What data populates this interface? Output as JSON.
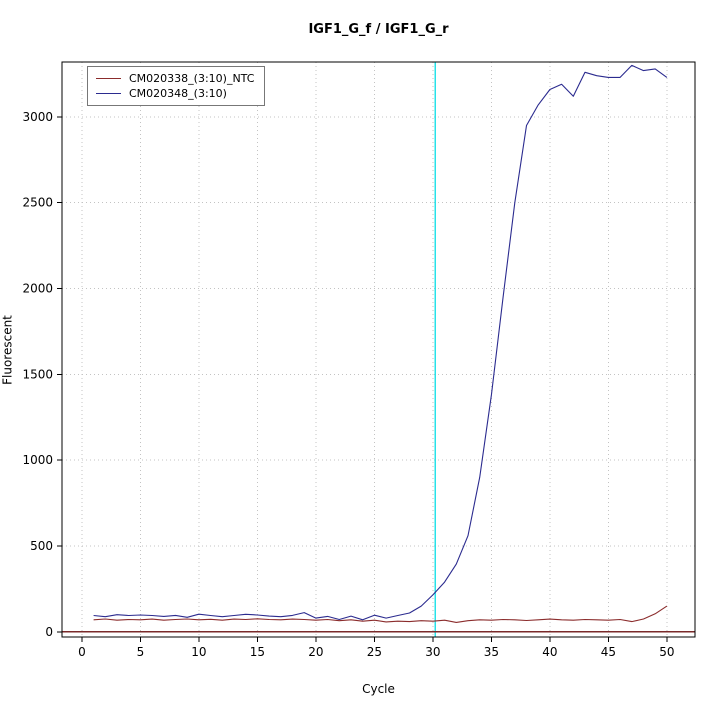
{
  "title": "IGF1_G_f / IGF1_G_r",
  "chart_data": {
    "type": "line",
    "title": "IGF1_G_f / IGF1_G_r",
    "xlabel": "Cycle",
    "ylabel": "Fluorescent",
    "x": [
      1,
      2,
      3,
      4,
      5,
      6,
      7,
      8,
      9,
      10,
      11,
      12,
      13,
      14,
      15,
      16,
      17,
      18,
      19,
      20,
      21,
      22,
      23,
      24,
      25,
      26,
      27,
      28,
      29,
      30,
      31,
      32,
      33,
      34,
      35,
      36,
      37,
      38,
      39,
      40,
      41,
      42,
      43,
      44,
      45,
      46,
      47,
      48,
      49,
      50
    ],
    "series": [
      {
        "name": "CM020338_(3:10)_NTC",
        "color": "#8b2c2c",
        "values": [
          70,
          75,
          68,
          72,
          70,
          74,
          68,
          72,
          75,
          70,
          73,
          68,
          74,
          72,
          76,
          72,
          70,
          74,
          72,
          68,
          72,
          65,
          70,
          62,
          68,
          58,
          62,
          60,
          65,
          62,
          68,
          55,
          65,
          70,
          68,
          72,
          70,
          66,
          70,
          74,
          70,
          68,
          72,
          70,
          68,
          72,
          60,
          75,
          105,
          150
        ]
      },
      {
        "name": "CM020348_(3:10)",
        "color": "#2b2b8f",
        "values": [
          95,
          88,
          100,
          95,
          98,
          95,
          90,
          96,
          85,
          103,
          95,
          88,
          95,
          102,
          98,
          92,
          88,
          96,
          112,
          80,
          90,
          72,
          92,
          70,
          97,
          80,
          95,
          110,
          150,
          215,
          290,
          395,
          560,
          900,
          1380,
          1950,
          2500,
          2950,
          3070,
          3160,
          3190,
          3120,
          3260,
          3240,
          3230,
          3230,
          3300,
          3270,
          3280,
          3230
        ]
      }
    ],
    "xlim": [
      -1.7,
      52.4
    ],
    "ylim": [
      -30,
      3320
    ],
    "xticks": [
      0,
      5,
      10,
      15,
      20,
      25,
      30,
      35,
      40,
      45,
      50
    ],
    "yticks": [
      0,
      500,
      1000,
      1500,
      2000,
      2500,
      3000
    ],
    "grid": true,
    "grid_color": "#c3c3c3",
    "axis_color": "#000000",
    "legend_position": "top-left",
    "vline": {
      "x": 30.2,
      "color": "#27e2e8"
    },
    "hline": {
      "y": 0,
      "color": "#7a2a2a"
    }
  }
}
